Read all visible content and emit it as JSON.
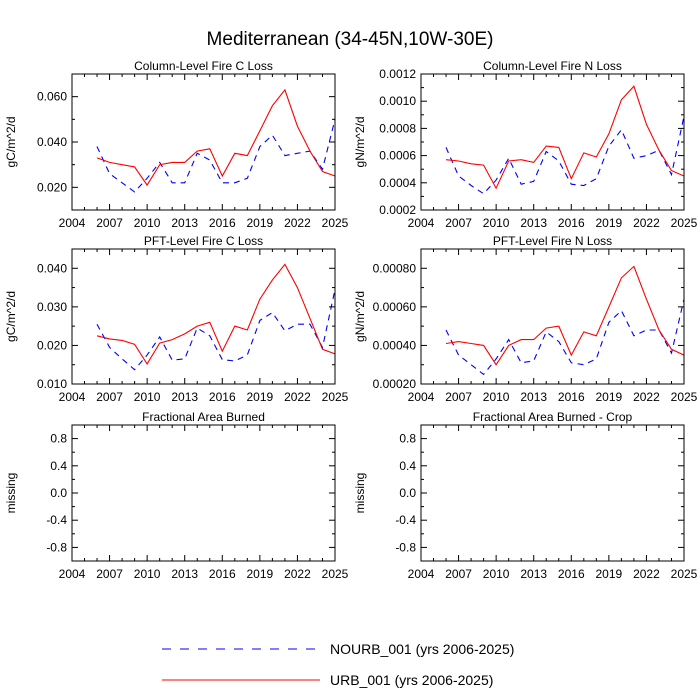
{
  "title": "Mediterranean (34-45N,10W-30E)",
  "legend": [
    {
      "label": "NOURB_001 (yrs 2006-2025)",
      "color": "#0000ff",
      "dash": true
    },
    {
      "label": "URB_001 (yrs 2006-2025)",
      "color": "#ff0000",
      "dash": false
    }
  ],
  "chart_data": [
    {
      "type": "line",
      "title": "Column-Level Fire C Loss",
      "ylabel": "gC/m^2/d",
      "xlim": [
        2004,
        2025
      ],
      "ylim": [
        0.01,
        0.07
      ],
      "xticks": [
        "2004",
        "2007",
        "2010",
        "2013",
        "2016",
        "2019",
        "2022",
        "2025"
      ],
      "yticks": [
        "0.020",
        "0.040",
        "0.060"
      ],
      "x": [
        2006,
        2007,
        2008,
        2009,
        2010,
        2011,
        2012,
        2013,
        2014,
        2015,
        2016,
        2017,
        2018,
        2019,
        2020,
        2021,
        2022,
        2023,
        2024,
        2025
      ],
      "series": [
        {
          "name": "NOURB_001",
          "values": [
            0.038,
            0.026,
            0.022,
            0.018,
            0.024,
            0.031,
            0.022,
            0.022,
            0.035,
            0.032,
            0.022,
            0.022,
            0.024,
            0.038,
            0.043,
            0.034,
            0.035,
            0.036,
            0.028,
            0.05
          ]
        },
        {
          "name": "URB_001",
          "values": [
            0.033,
            0.031,
            0.03,
            0.029,
            0.021,
            0.03,
            0.031,
            0.031,
            0.036,
            0.037,
            0.025,
            0.035,
            0.034,
            0.045,
            0.056,
            0.063,
            0.047,
            0.036,
            0.027,
            0.025
          ]
        }
      ]
    },
    {
      "type": "line",
      "title": "Column-Level Fire N Loss",
      "ylabel": "gN/m^2/d",
      "xlim": [
        2004,
        2025
      ],
      "ylim": [
        0.0002,
        0.0012
      ],
      "xticks": [
        "2004",
        "2007",
        "2010",
        "2013",
        "2016",
        "2019",
        "2022",
        "2025"
      ],
      "yticks": [
        "0.0002",
        "0.0004",
        "0.0006",
        "0.0008",
        "0.0010",
        "0.0012"
      ],
      "x": [
        2006,
        2007,
        2008,
        2009,
        2010,
        2011,
        2012,
        2013,
        2014,
        2015,
        2016,
        2017,
        2018,
        2019,
        2020,
        2021,
        2022,
        2023,
        2024,
        2025
      ],
      "series": [
        {
          "name": "NOURB_001",
          "values": [
            0.00066,
            0.00045,
            0.00038,
            0.00032,
            0.00042,
            0.00058,
            0.00039,
            0.00041,
            0.00063,
            0.00056,
            0.00039,
            0.00038,
            0.00043,
            0.00067,
            0.00079,
            0.00058,
            0.0006,
            0.00064,
            0.00046,
            0.00089
          ]
        },
        {
          "name": "URB_001",
          "values": [
            0.00057,
            0.00056,
            0.00054,
            0.00053,
            0.00036,
            0.00056,
            0.00057,
            0.00055,
            0.00067,
            0.00066,
            0.00043,
            0.00062,
            0.00059,
            0.00076,
            0.00101,
            0.00111,
            0.00083,
            0.00064,
            0.00049,
            0.00045
          ]
        }
      ]
    },
    {
      "type": "line",
      "title": "PFT-Level Fire C Loss",
      "ylabel": "gC/m^2/d",
      "xlim": [
        2004,
        2025
      ],
      "ylim": [
        0.01,
        0.045
      ],
      "xticks": [
        "2004",
        "2007",
        "2010",
        "2013",
        "2016",
        "2019",
        "2022",
        "2025"
      ],
      "yticks": [
        "0.010",
        "0.020",
        "0.030",
        "0.040"
      ],
      "x": [
        2006,
        2007,
        2008,
        2009,
        2010,
        2011,
        2012,
        2013,
        2014,
        2015,
        2016,
        2017,
        2018,
        2019,
        2020,
        2021,
        2022,
        2023,
        2024,
        2025
      ],
      "series": [
        {
          "name": "NOURB_001",
          "values": [
            0.0255,
            0.0195,
            0.0165,
            0.0137,
            0.0175,
            0.0222,
            0.0162,
            0.0165,
            0.0245,
            0.0225,
            0.0163,
            0.016,
            0.0175,
            0.0265,
            0.0285,
            0.0238,
            0.0255,
            0.0255,
            0.0195,
            0.0345
          ]
        },
        {
          "name": "URB_001",
          "values": [
            0.0225,
            0.0217,
            0.0213,
            0.0203,
            0.0152,
            0.0206,
            0.0215,
            0.023,
            0.025,
            0.026,
            0.0185,
            0.025,
            0.024,
            0.032,
            0.037,
            0.041,
            0.035,
            0.027,
            0.019,
            0.0178
          ]
        }
      ]
    },
    {
      "type": "line",
      "title": "PFT-Level Fire N Loss",
      "ylabel": "gN/m^2/d",
      "xlim": [
        2004,
        2025
      ],
      "ylim": [
        0.0002,
        0.0009
      ],
      "xticks": [
        "2004",
        "2007",
        "2010",
        "2013",
        "2016",
        "2019",
        "2022",
        "2025"
      ],
      "yticks": [
        "0.00020",
        "0.00040",
        "0.00060",
        "0.00080"
      ],
      "x": [
        2006,
        2007,
        2008,
        2009,
        2010,
        2011,
        2012,
        2013,
        2014,
        2015,
        2016,
        2017,
        2018,
        2019,
        2020,
        2021,
        2022,
        2023,
        2024,
        2025
      ],
      "series": [
        {
          "name": "NOURB_001",
          "values": [
            0.00048,
            0.00035,
            0.0003,
            0.00025,
            0.00033,
            0.00043,
            0.00031,
            0.00032,
            0.00047,
            0.00042,
            0.00031,
            0.0003,
            0.00033,
            0.00052,
            0.00058,
            0.00045,
            0.00048,
            0.00048,
            0.00036,
            0.00064
          ]
        },
        {
          "name": "URB_001",
          "values": [
            0.00041,
            0.00042,
            0.00041,
            0.0004,
            0.0003,
            0.0004,
            0.00043,
            0.00043,
            0.00049,
            0.0005,
            0.00035,
            0.00047,
            0.00045,
            0.0006,
            0.00075,
            0.00081,
            0.00064,
            0.00048,
            0.00038,
            0.00035
          ]
        }
      ]
    },
    {
      "type": "line",
      "title": "Fractional Area Burned",
      "ylabel": "missing",
      "xlim": [
        2004,
        2025
      ],
      "ylim": [
        -1.0,
        1.0
      ],
      "xticks": [
        "2004",
        "2007",
        "2010",
        "2013",
        "2016",
        "2019",
        "2022",
        "2025"
      ],
      "yticks": [
        "-0.8",
        "-0.4",
        "0.0",
        "0.4",
        "0.8"
      ],
      "x": [],
      "series": []
    },
    {
      "type": "line",
      "title": "Fractional Area Burned - Crop",
      "ylabel": "missing",
      "xlim": [
        2004,
        2025
      ],
      "ylim": [
        -1.0,
        1.0
      ],
      "xticks": [
        "2004",
        "2007",
        "2010",
        "2013",
        "2016",
        "2019",
        "2022",
        "2025"
      ],
      "yticks": [
        "-0.8",
        "-0.4",
        "0.0",
        "0.4",
        "0.8"
      ],
      "x": [],
      "series": []
    }
  ]
}
